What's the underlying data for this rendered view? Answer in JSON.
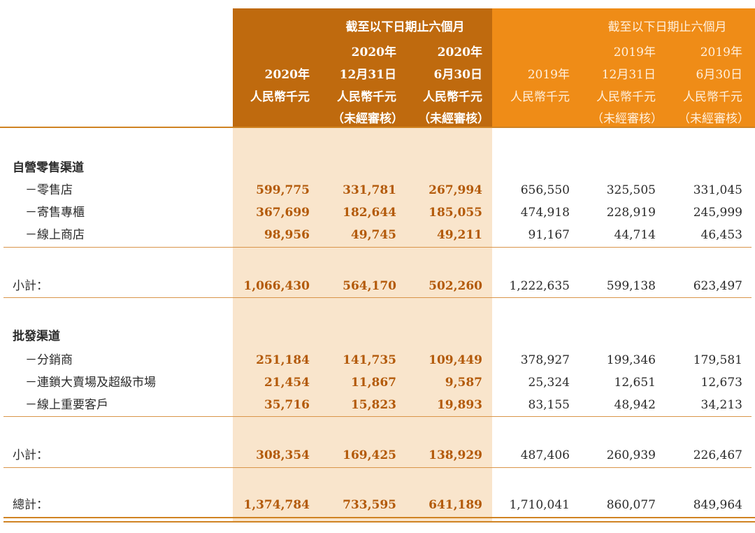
{
  "header": {
    "group_2020": "截至以下日期止六個月",
    "group_2019": "截至以下日期止六個月",
    "col_2020_full": {
      "line2": "2020年",
      "line3": "人民幣千元"
    },
    "col_2020_dec": {
      "line1": "2020年",
      "line2": "12月31日",
      "line3": "人民幣千元",
      "line4": "（未經審核）"
    },
    "col_2020_jun": {
      "line1": "2020年",
      "line2": "6月30日",
      "line3": "人民幣千元",
      "line4": "（未經審核）"
    },
    "col_2019_full": {
      "line2": "2019年",
      "line3": "人民幣千元"
    },
    "col_2019_dec": {
      "line1": "2019年",
      "line2": "12月31日",
      "line3": "人民幣千元",
      "line4": "（未經審核）"
    },
    "col_2019_jun": {
      "line1": "2019年",
      "line2": "6月30日",
      "line3": "人民幣千元",
      "line4": "（未經審核）"
    }
  },
  "sections": {
    "retail": {
      "title": "自營零售渠道",
      "rows": [
        {
          "label": "－零售店",
          "values": [
            "599,775",
            "331,781",
            "267,994",
            "656,550",
            "325,505",
            "331,045"
          ]
        },
        {
          "label": "－寄售專櫃",
          "values": [
            "367,699",
            "182,644",
            "185,055",
            "474,918",
            "228,919",
            "245,999"
          ]
        },
        {
          "label": "－線上商店",
          "values": [
            "98,956",
            "49,745",
            "49,211",
            "91,167",
            "44,714",
            "46,453"
          ]
        }
      ],
      "subtotal": {
        "label": "小計：",
        "values": [
          "1,066,430",
          "564,170",
          "502,260",
          "1,222,635",
          "599,138",
          "623,497"
        ]
      }
    },
    "wholesale": {
      "title": "批發渠道",
      "rows": [
        {
          "label": "－分銷商",
          "values": [
            "251,184",
            "141,735",
            "109,449",
            "378,927",
            "199,346",
            "179,581"
          ]
        },
        {
          "label": "－連鎖大賣場及超級市場",
          "values": [
            "21,454",
            "11,867",
            "9,587",
            "25,324",
            "12,651",
            "12,673"
          ]
        },
        {
          "label": "－線上重要客戶",
          "values": [
            "35,716",
            "15,823",
            "19,893",
            "83,155",
            "48,942",
            "34,213"
          ]
        }
      ],
      "subtotal": {
        "label": "小計：",
        "values": [
          "308,354",
          "169,425",
          "138,929",
          "487,406",
          "260,939",
          "226,467"
        ]
      }
    },
    "total": {
      "label": "總計：",
      "values": [
        "1,374,784",
        "733,595",
        "641,189",
        "1,710,041",
        "860,077",
        "849,964"
      ]
    }
  }
}
